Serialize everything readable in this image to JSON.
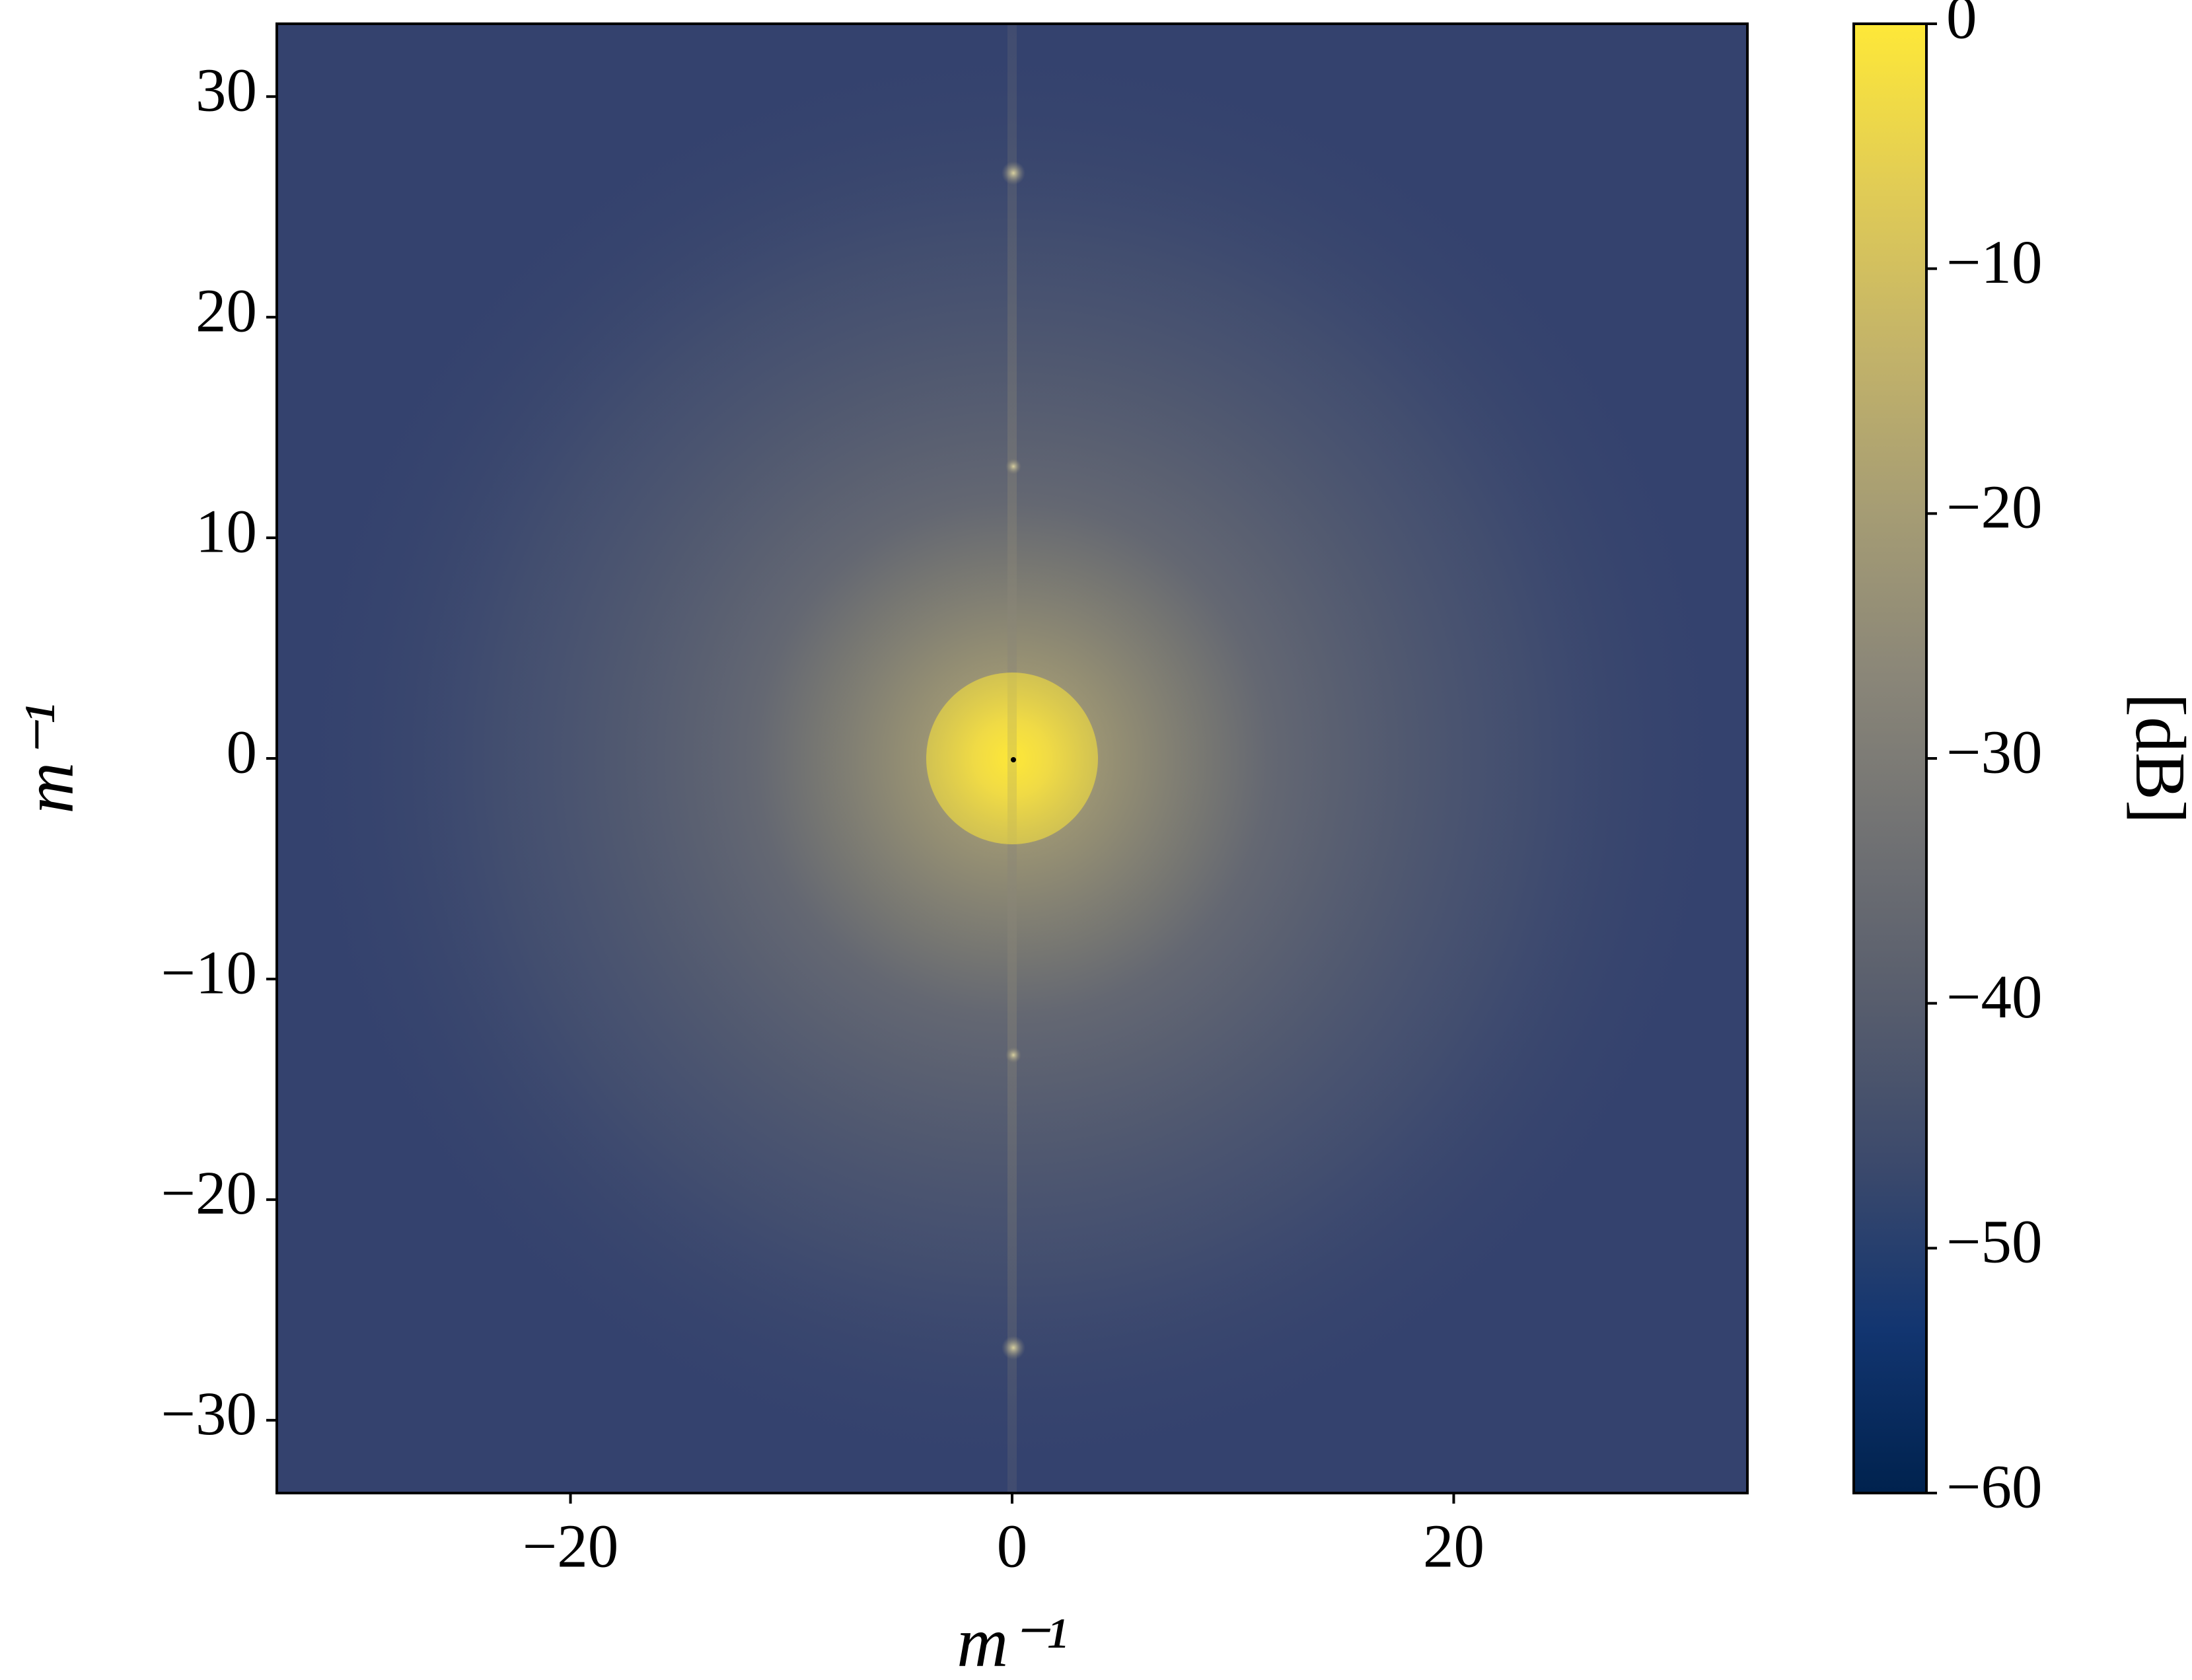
{
  "chart_data": {
    "type": "heatmap",
    "x_label": "m⁻¹",
    "y_label": "m⁻¹",
    "xlim": [
      -33.3,
      33.3
    ],
    "ylim": [
      -33.3,
      33.3
    ],
    "xticks": [
      {
        "value": -20,
        "label": "−20"
      },
      0,
      20
    ],
    "yticks": [
      {
        "value": -30,
        "label": "−30"
      },
      {
        "value": -20,
        "label": "−20"
      },
      {
        "value": -10,
        "label": "−10"
      },
      0,
      10,
      20,
      30
    ],
    "colorbar": {
      "label": "[dB]",
      "colormap": "cividis",
      "lim": [
        -60,
        0
      ],
      "ticks": [
        {
          "value": -60,
          "label": "−60"
        },
        {
          "value": -50,
          "label": "−50"
        },
        {
          "value": -40,
          "label": "−40"
        },
        {
          "value": -30,
          "label": "−30"
        },
        {
          "value": -20,
          "label": "−20"
        },
        {
          "value": -10,
          "label": "−10"
        },
        0
      ]
    }
  }
}
